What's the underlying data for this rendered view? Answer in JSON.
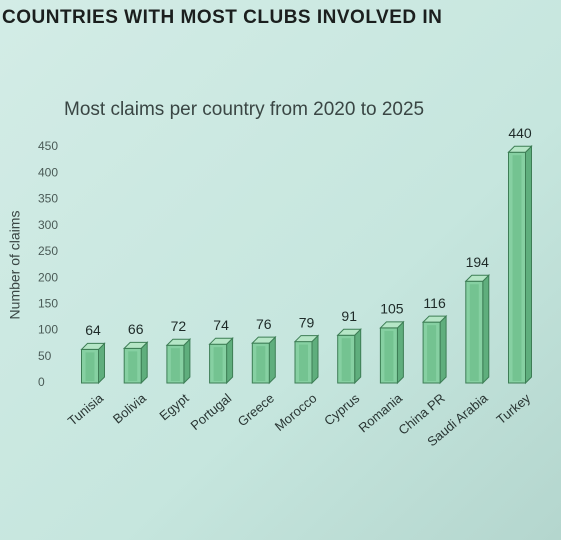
{
  "header": "COUNTRIES WITH MOST CLUBS INVOLVED IN",
  "chart_data": {
    "type": "bar3d",
    "title": "Most claims per country from 2020 to 2025",
    "y_label": "Number of claims",
    "categories": [
      "Tunisia",
      "Bolivia",
      "Egypt",
      "Portugal",
      "Greece",
      "Morocco",
      "Cyprus",
      "Romania",
      "China PR",
      "Saudi Arabia",
      "Turkey"
    ],
    "values": [
      64,
      66,
      72,
      74,
      76,
      79,
      91,
      105,
      116,
      194,
      440
    ],
    "color": "#86d0a2",
    "ylim": [
      0,
      450
    ],
    "yticks": [
      0,
      50,
      100,
      150,
      200,
      250,
      300,
      350,
      400,
      450
    ],
    "grid": false
  }
}
